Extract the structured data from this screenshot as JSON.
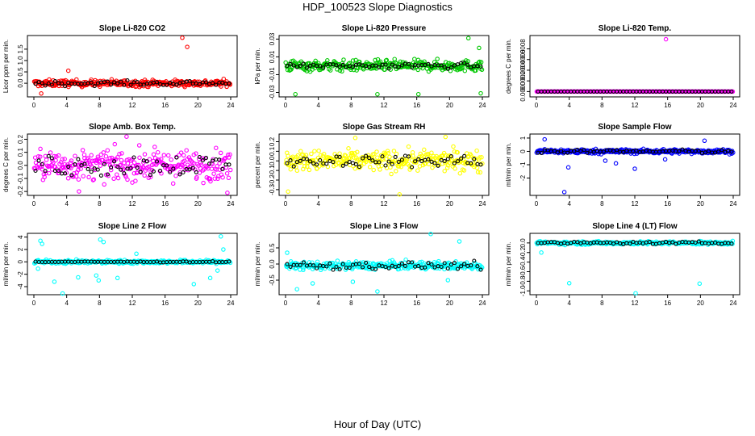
{
  "figure": {
    "title": "HDP_100523  Slope Diagnostics",
    "xlabel": "Hour of Day (UTC)"
  },
  "chart_data": [
    {
      "type": "scatter",
      "title": "Slope Li-820 CO2",
      "ylabel": "Licor ppm per min.",
      "color": "#ff0000",
      "xlim": [
        0,
        24
      ],
      "ylim": [
        -0.6,
        2.1
      ],
      "xticks": [
        "0",
        "4",
        "8",
        "12",
        "16",
        "20",
        "24"
      ],
      "yticks": [
        {
          "v": 0.0,
          "t": "0.0"
        },
        {
          "v": 0.5,
          "t": "0.5"
        },
        {
          "v": 1.0,
          "t": "1.0"
        },
        {
          "v": 1.5,
          "t": "1.5"
        }
      ],
      "band": {
        "center": 0.0,
        "spread": 0.26
      },
      "outliers": [
        [
          18.1,
          2.0
        ],
        [
          18.7,
          1.6
        ],
        [
          0.9,
          -0.45
        ],
        [
          4.2,
          0.55
        ]
      ],
      "black_spread": 0.2
    },
    {
      "type": "scatter",
      "title": "Slope Li-820 Pressure",
      "ylabel": "kPa per min.",
      "color": "#00c800",
      "xlim": [
        0,
        24
      ],
      "ylim": [
        -0.035,
        0.034
      ],
      "xticks": [
        "0",
        "4",
        "8",
        "12",
        "16",
        "20",
        "24"
      ],
      "yticks": [
        {
          "v": -0.03,
          "t": "-0.03"
        },
        {
          "v": -0.01,
          "t": "-0.01"
        },
        {
          "v": 0.01,
          "t": "0.01"
        },
        {
          "v": 0.03,
          "t": "0.03"
        }
      ],
      "band": {
        "center": 0.0,
        "spread": 0.011
      },
      "outliers": [
        [
          22.3,
          0.031
        ],
        [
          1.2,
          -0.032
        ],
        [
          11.2,
          -0.032
        ],
        [
          16.2,
          -0.032
        ],
        [
          23.8,
          -0.031
        ],
        [
          23.6,
          0.02
        ]
      ],
      "black_spread": 0.006
    },
    {
      "type": "scatter",
      "title": "Slope Li-820 Temp.",
      "ylabel": "degrees C per min.",
      "color": "#ff00ff",
      "xlim": [
        0,
        24
      ],
      "ylim": [
        -0.0001,
        0.00105
      ],
      "xticks": [
        "0",
        "4",
        "8",
        "12",
        "16",
        "20",
        "24"
      ],
      "yticks": [
        {
          "v": 0.0,
          "t": "0.0000"
        },
        {
          "v": 0.0002,
          "t": "0.0002"
        },
        {
          "v": 0.0004,
          "t": "0.0004"
        },
        {
          "v": 0.0006,
          "t": "0.0006"
        },
        {
          "v": 0.0008,
          "t": "0.0008"
        }
      ],
      "band": {
        "center": 0.0,
        "spread": 0.0
      },
      "outliers": [
        [
          15.8,
          0.00098
        ]
      ],
      "black_spread": 0.0
    },
    {
      "type": "scatter",
      "title": "Slope Amb. Box Temp.",
      "ylabel": "degrees C per min.",
      "color": "#ff00ff",
      "xlim": [
        0,
        24
      ],
      "ylim": [
        -0.23,
        0.24
      ],
      "xticks": [
        "0",
        "4",
        "8",
        "12",
        "16",
        "20",
        "24"
      ],
      "yticks": [
        {
          "v": -0.2,
          "t": "-0.2"
        },
        {
          "v": -0.1,
          "t": "-0.1"
        },
        {
          "v": 0.0,
          "t": "0.0"
        },
        {
          "v": 0.1,
          "t": "0.1"
        },
        {
          "v": 0.2,
          "t": "0.2"
        }
      ],
      "band": {
        "center": 0.0,
        "spread": 0.2
      },
      "outliers": [
        [
          11.3,
          0.22
        ],
        [
          23.6,
          -0.21
        ],
        [
          5.5,
          -0.2
        ]
      ],
      "black_spread": 0.17
    },
    {
      "type": "scatter",
      "title": "Slope Gas Stream RH",
      "ylabel": "percent per min.",
      "color": "#ffff00",
      "xlim": [
        0,
        24
      ],
      "ylim": [
        -0.36,
        0.28
      ],
      "xticks": [
        "0",
        "4",
        "8",
        "12",
        "16",
        "20",
        "24"
      ],
      "yticks": [
        {
          "v": -0.3,
          "t": "-0.3"
        },
        {
          "v": -0.2,
          "t": "-0.2"
        },
        {
          "v": -0.1,
          "t": "-0.1"
        },
        {
          "v": 0.0,
          "t": "0.0"
        },
        {
          "v": 0.1,
          "t": "0.1"
        },
        {
          "v": 0.2,
          "t": "0.2"
        }
      ],
      "band": {
        "center": 0.0,
        "spread": 0.19
      },
      "outliers": [
        [
          0.3,
          -0.32
        ],
        [
          13.9,
          -0.35
        ],
        [
          19.5,
          0.25
        ],
        [
          8.5,
          0.24
        ]
      ],
      "black_spread": 0.12
    },
    {
      "type": "scatter",
      "title": "Slope Sample Flow",
      "ylabel": "ml/min per min.",
      "color": "#0000ff",
      "xlim": [
        0,
        24
      ],
      "ylim": [
        -3.3,
        1.3
      ],
      "xticks": [
        "0",
        "4",
        "8",
        "12",
        "16",
        "20",
        "24"
      ],
      "yticks": [
        {
          "v": -2,
          "t": "-2"
        },
        {
          "v": -1,
          "t": "-1"
        },
        {
          "v": 0,
          "t": "0"
        },
        {
          "v": 1,
          "t": "1"
        }
      ],
      "band": {
        "center": 0.0,
        "spread": 0.3
      },
      "outliers": [
        [
          3.4,
          -3.05
        ],
        [
          3.9,
          -1.2
        ],
        [
          12.0,
          -1.3
        ],
        [
          8.4,
          -0.7
        ],
        [
          9.7,
          -0.9
        ],
        [
          15.7,
          -0.6
        ],
        [
          20.5,
          0.8
        ],
        [
          1.0,
          0.9
        ]
      ],
      "black_spread": 0.25
    },
    {
      "type": "scatter",
      "title": "Slope Line 2 Flow",
      "ylabel": "ml/min per min.",
      "color": "#00ffff",
      "xlim": [
        0,
        24
      ],
      "ylim": [
        -5.3,
        4.6
      ],
      "xticks": [
        "0",
        "4",
        "8",
        "12",
        "16",
        "20",
        "24"
      ],
      "yticks": [
        {
          "v": -4,
          "t": "-4"
        },
        {
          "v": -2,
          "t": "-2"
        },
        {
          "v": 0,
          "t": "0"
        },
        {
          "v": 2,
          "t": "2"
        },
        {
          "v": 4,
          "t": "4"
        }
      ],
      "band": {
        "center": 0.0,
        "spread": 0.5
      },
      "outliers": [
        [
          0.8,
          3.4
        ],
        [
          1.0,
          2.9
        ],
        [
          2.5,
          -3.2
        ],
        [
          3.5,
          -5.1
        ],
        [
          5.4,
          -2.5
        ],
        [
          8.1,
          3.6
        ],
        [
          8.5,
          3.2
        ],
        [
          7.6,
          -2.2
        ],
        [
          7.9,
          -3.0
        ],
        [
          10.2,
          -2.6
        ],
        [
          19.5,
          -3.6
        ],
        [
          21.5,
          -2.6
        ],
        [
          22.4,
          -1.4
        ],
        [
          22.8,
          4.1
        ],
        [
          23.1,
          2.0
        ],
        [
          12.5,
          1.3
        ],
        [
          0.5,
          -1.1
        ]
      ],
      "black_spread": 0.15
    },
    {
      "type": "scatter",
      "title": "Slope Line 3 Flow",
      "ylabel": "ml/min per min.",
      "color": "#00ffff",
      "xlim": [
        0,
        24
      ],
      "ylim": [
        -0.95,
        0.95
      ],
      "xticks": [
        "0",
        "4",
        "8",
        "12",
        "16",
        "20",
        "24"
      ],
      "yticks": [
        {
          "v": -0.5,
          "t": "-0.5"
        },
        {
          "v": 0.0,
          "t": "0.0"
        },
        {
          "v": 0.5,
          "t": "0.5"
        }
      ],
      "band": {
        "center": -0.05,
        "spread": 0.22
      },
      "outliers": [
        [
          17.7,
          0.93
        ],
        [
          21.2,
          0.7
        ],
        [
          11.2,
          -0.85
        ],
        [
          1.4,
          -0.78
        ],
        [
          0.2,
          0.35
        ],
        [
          3.3,
          -0.6
        ],
        [
          8.2,
          -0.55
        ],
        [
          19.8,
          -0.5
        ]
      ],
      "black_spread": 0.22
    },
    {
      "type": "scatter",
      "title": "Slope Line 4 (LT) Flow",
      "ylabel": "ml/min per min.",
      "color": "#00ffff",
      "xlim": [
        0,
        24
      ],
      "ylim": [
        -1.08,
        0.2
      ],
      "xticks": [
        "0",
        "4",
        "8",
        "12",
        "16",
        "20",
        "24"
      ],
      "yticks": [
        {
          "v": -1.0,
          "t": "-1.0"
        },
        {
          "v": -0.8,
          "t": "-0.8"
        },
        {
          "v": -0.6,
          "t": "-0.6"
        },
        {
          "v": -0.4,
          "t": "-0.4"
        },
        {
          "v": -0.2,
          "t": "-0.2"
        },
        {
          "v": 0.0,
          "t": "0.0"
        }
      ],
      "band": {
        "center": 0.0,
        "spread": 0.06
      },
      "outliers": [
        [
          4.0,
          -0.84
        ],
        [
          12.1,
          -1.05
        ],
        [
          19.9,
          -0.85
        ],
        [
          0.6,
          -0.2
        ]
      ],
      "black_spread": 0.05
    }
  ]
}
